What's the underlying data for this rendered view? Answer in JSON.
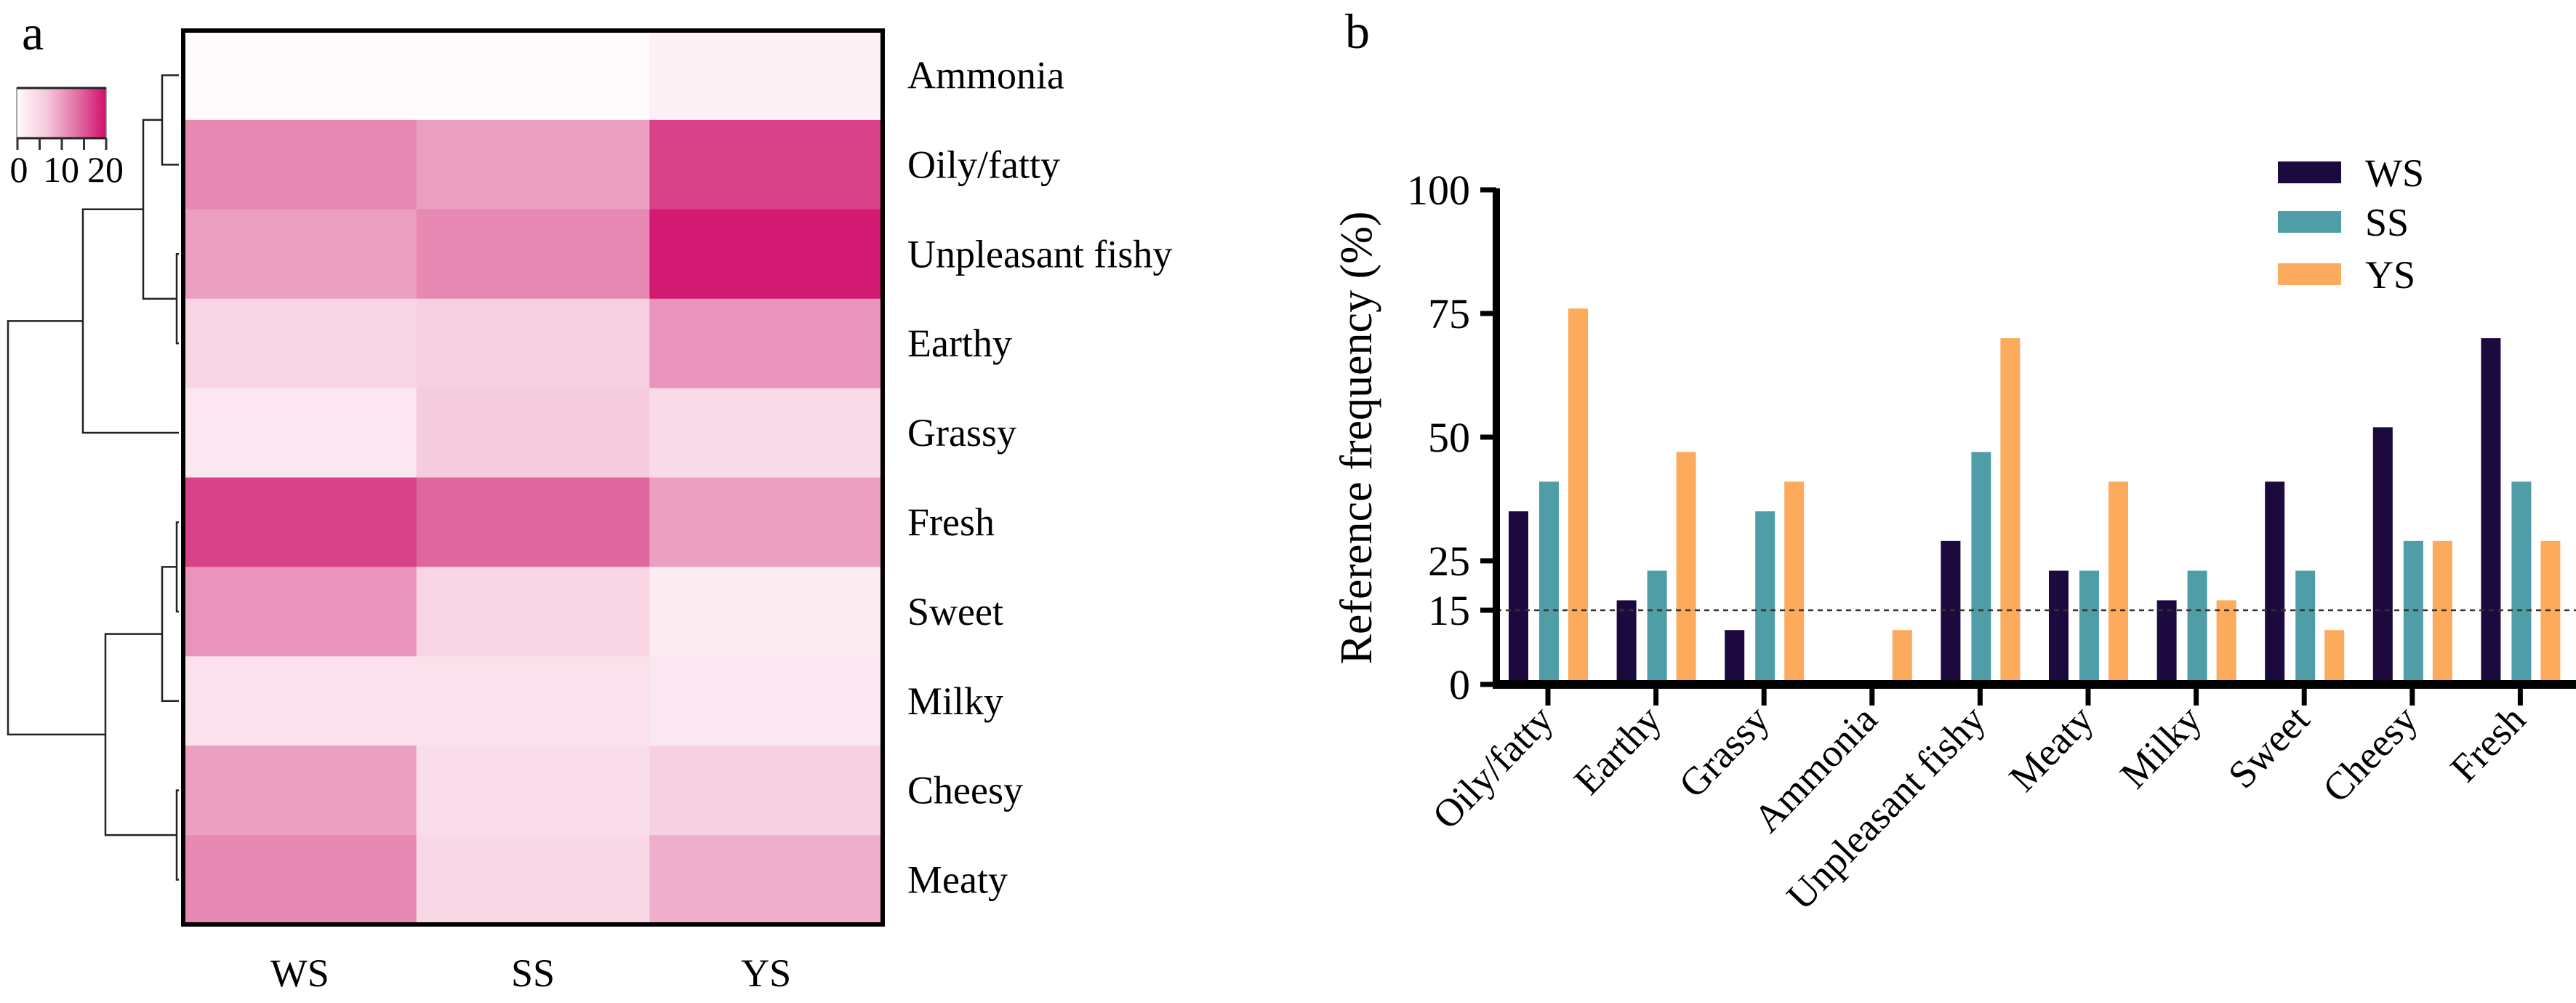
{
  "panels": {
    "a": {
      "label": "a"
    },
    "b": {
      "label": "b"
    }
  },
  "chart_data": [
    {
      "type": "heatmap",
      "panel": "a",
      "title": "",
      "columns": [
        "WS",
        "SS",
        "YS"
      ],
      "rows": [
        "Ammonia",
        "Oily/fatty",
        "Unpleasant fishy",
        "Earthy",
        "Grassy",
        "Fresh",
        "Sweet",
        "Milky",
        "Cheesy",
        "Meaty"
      ],
      "values": [
        [
          0,
          0,
          1.5
        ],
        [
          14,
          12,
          20
        ],
        [
          12,
          14,
          23
        ],
        [
          6,
          7,
          13
        ],
        [
          3,
          7.5,
          5
        ],
        [
          20,
          17,
          12
        ],
        [
          13,
          6,
          2.5
        ],
        [
          4,
          4,
          3
        ],
        [
          12,
          4.5,
          6.5
        ],
        [
          14,
          5.5,
          10.5
        ]
      ],
      "colorbar": {
        "range": [
          0,
          24
        ],
        "tick_labels": [
          "0",
          "10",
          "20"
        ],
        "colors": [
          "#fffafb",
          "#f4c6da",
          "#e06aa0",
          "#d10d6a"
        ]
      },
      "dendrogram": "row clustering: ((Ammonia, Oily/fatty), (Unpleasant fishy, Earthy)), Grassy | ((Fresh, Sweet), Milky), (Cheesy, Meaty)"
    },
    {
      "type": "bar",
      "panel": "b",
      "title": "",
      "xlabel": "",
      "ylabel": "Reference frequency (%)",
      "ylim": [
        0,
        100
      ],
      "yticks": [
        0,
        15,
        25,
        50,
        75,
        100
      ],
      "reference_line": {
        "value": 15,
        "style": "dashed"
      },
      "categories": [
        "Oily/fatty",
        "Earthy",
        "Grassy",
        "Ammonia",
        "Unpleasant fishy",
        "Meaty",
        "Milky",
        "Sweet",
        "Cheesy",
        "Fresh"
      ],
      "series": [
        {
          "name": "WS",
          "color": "#1c0a3e",
          "values": [
            35,
            17,
            11,
            0,
            29,
            23,
            17,
            41,
            52,
            70
          ]
        },
        {
          "name": "SS",
          "color": "#4f9da6",
          "values": [
            41,
            23,
            35,
            0,
            47,
            23,
            23,
            23,
            29,
            41
          ]
        },
        {
          "name": "YS",
          "color": "#fbab5b",
          "values": [
            76,
            47,
            41,
            11,
            70,
            41,
            17,
            11,
            29,
            29
          ]
        }
      ],
      "legend": {
        "position": "top-right",
        "entries": [
          "WS",
          "SS",
          "YS"
        ]
      }
    }
  ]
}
